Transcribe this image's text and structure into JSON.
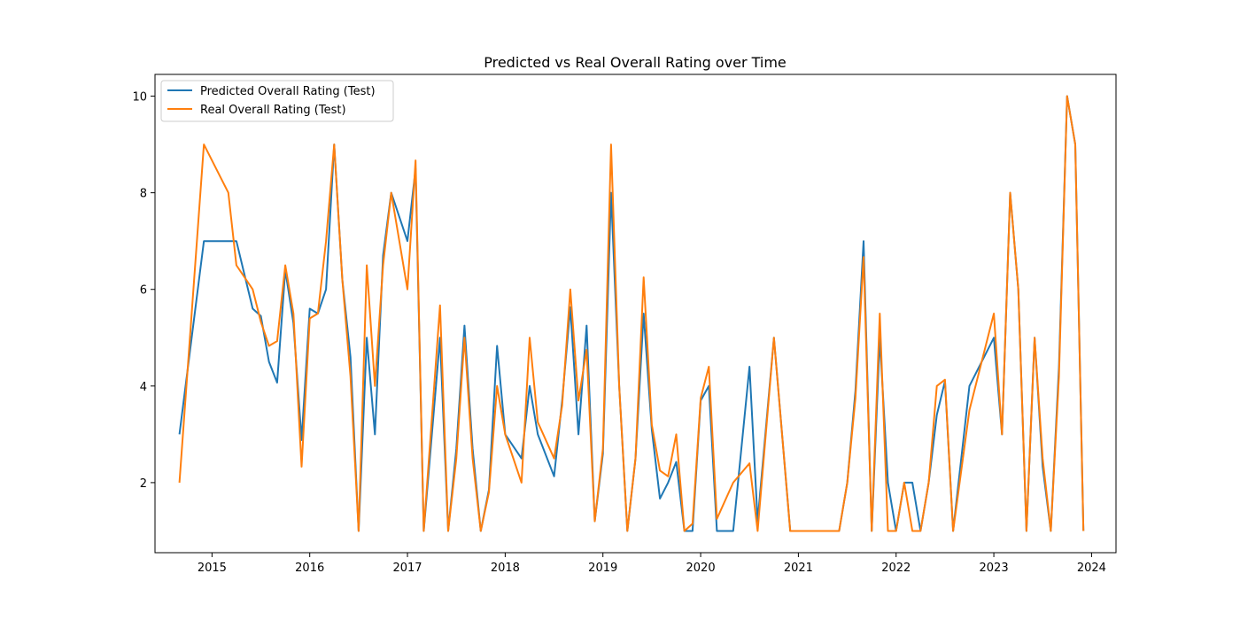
{
  "chart_data": {
    "type": "line",
    "title": "Predicted vs Real Overall Rating over Time",
    "xlabel": "",
    "ylabel": "",
    "x_ticks": [
      "2015",
      "2016",
      "2017",
      "2018",
      "2019",
      "2020",
      "2021",
      "2022",
      "2023",
      "2024"
    ],
    "y_ticks": [
      "2",
      "4",
      "6",
      "8",
      "10"
    ],
    "xlim": [
      "2014-06-01",
      "2024-04-01"
    ],
    "ylim": [
      0.55,
      10.45
    ],
    "grid": false,
    "legend_position": "upper-left",
    "x": [
      "2014-09",
      "2014-12",
      "2015-03",
      "2015-04",
      "2015-05",
      "2015-06",
      "2015-07",
      "2015-08",
      "2015-09",
      "2015-10",
      "2015-11",
      "2015-12",
      "2016-01",
      "2016-02",
      "2016-03",
      "2016-04",
      "2016-05",
      "2016-06",
      "2016-07",
      "2016-08",
      "2016-09",
      "2016-10",
      "2016-11",
      "2017-01",
      "2017-02",
      "2017-03",
      "2017-05",
      "2017-06",
      "2017-07",
      "2017-08",
      "2017-09",
      "2017-10",
      "2017-11",
      "2017-12",
      "2018-01",
      "2018-03",
      "2018-04",
      "2018-05",
      "2018-07",
      "2018-08",
      "2018-09",
      "2018-10",
      "2018-11",
      "2018-12",
      "2019-01",
      "2019-02",
      "2019-03",
      "2019-04",
      "2019-05",
      "2019-06",
      "2019-07",
      "2019-08",
      "2019-09",
      "2019-10",
      "2019-11",
      "2019-12",
      "2020-01",
      "2020-02",
      "2020-03",
      "2020-05",
      "2020-07",
      "2020-08",
      "2020-10",
      "2020-12",
      "2021-01",
      "2021-02",
      "2021-03",
      "2021-06",
      "2021-07",
      "2021-08",
      "2021-09",
      "2021-10",
      "2021-11",
      "2021-12",
      "2022-01",
      "2022-02",
      "2022-03",
      "2022-04",
      "2022-05",
      "2022-06",
      "2022-07",
      "2022-08",
      "2022-10",
      "2023-01",
      "2023-02",
      "2023-03",
      "2023-04",
      "2023-05",
      "2023-06",
      "2023-07",
      "2023-08",
      "2023-09",
      "2023-10",
      "2023-11",
      "2023-12"
    ],
    "series": [
      {
        "name": "Predicted Overall Rating (Test)",
        "color": "#1f77b4",
        "values": [
          3,
          7,
          7,
          7,
          6.3,
          5.6,
          5.45,
          4.5,
          4.07,
          6.4,
          5.3,
          2.88,
          5.6,
          5.5,
          6,
          9,
          6.2,
          4.6,
          1,
          5,
          3,
          6.7,
          8,
          7,
          8.5,
          1,
          5,
          1,
          2.7,
          5.25,
          2.7,
          1,
          1.85,
          4.83,
          3,
          2.5,
          4,
          3,
          2.13,
          3.7,
          5.63,
          3,
          5.25,
          1.2,
          2.6,
          8,
          4,
          1,
          2.5,
          5.5,
          3.1,
          1.67,
          2,
          2.43,
          1,
          1,
          3.7,
          4,
          1,
          1,
          4.4,
          1.2,
          5,
          1,
          1,
          1,
          1,
          1,
          2,
          3.9,
          7,
          1,
          5,
          2,
          1,
          2,
          2,
          1,
          2,
          3.4,
          4.1,
          1,
          4,
          5,
          3,
          8,
          6,
          1,
          5,
          2.33,
          1,
          4.4,
          10,
          9,
          1
        ]
      },
      {
        "name": "Real Overall Rating (Test)",
        "color": "#ff7f0e",
        "values": [
          2,
          9,
          8,
          6.5,
          6.25,
          6,
          5.33,
          4.83,
          4.93,
          6.5,
          5.5,
          2.33,
          5.4,
          5.5,
          7,
          9,
          6.2,
          4.2,
          1,
          6.5,
          4,
          6.5,
          8,
          6,
          8.67,
          1,
          5.67,
          1,
          2.5,
          5,
          2.5,
          1,
          1.8,
          4,
          3,
          2,
          5,
          3.25,
          2.5,
          3.6,
          6,
          3.7,
          4.75,
          1.2,
          2.7,
          9,
          4,
          1,
          2.5,
          6.25,
          3.2,
          2.25,
          2.13,
          3,
          1,
          1.15,
          3.75,
          4.4,
          1.25,
          2,
          2.4,
          1,
          5,
          1,
          1,
          1,
          1,
          1,
          2,
          3.75,
          6.67,
          1,
          5.5,
          1,
          1,
          2,
          1,
          1,
          2,
          4,
          4.13,
          1,
          3.5,
          5.5,
          3,
          8,
          6,
          1,
          5,
          2.5,
          1,
          4.2,
          10,
          9,
          1
        ]
      }
    ]
  }
}
